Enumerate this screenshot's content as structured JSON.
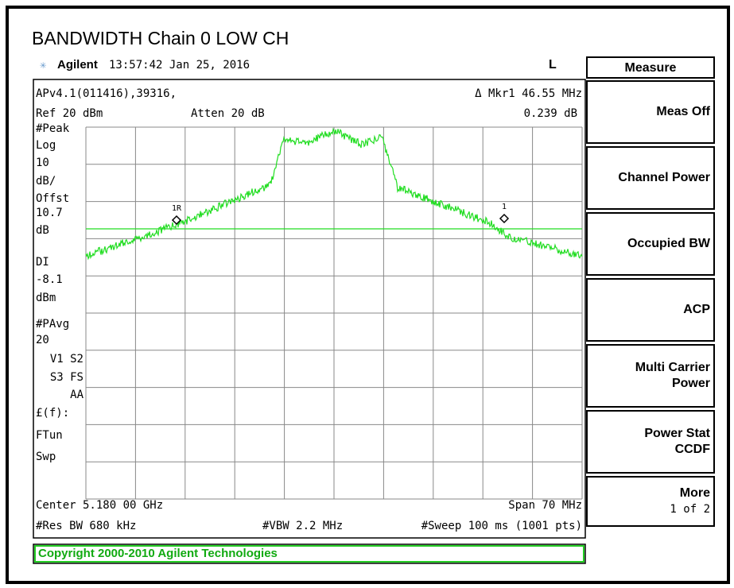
{
  "title": "BANDWIDTH Chain 0 LOW CH",
  "header": {
    "brand": "Agilent",
    "time": "13:57:42  Jan 25, 2016",
    "mode": "L"
  },
  "menu": {
    "title": "Measure",
    "buttons": [
      {
        "lines": [
          "Meas Off"
        ]
      },
      {
        "lines": [
          "Channel Power"
        ]
      },
      {
        "lines": [
          "Occupied BW"
        ]
      },
      {
        "lines": [
          "ACP"
        ]
      },
      {
        "lines": [
          "Multi Carrier",
          "Power"
        ]
      },
      {
        "lines": [
          "Power Stat",
          "CCDF"
        ]
      },
      {
        "lines": [
          "More",
          "1 of 2"
        ]
      }
    ]
  },
  "screen": {
    "top_left": [
      "APv4.1(011416),39316,",
      "Ref 20 dBm"
    ],
    "atten": "Atten 20 dB",
    "marker": [
      "Δ Mkr1  46.55 MHz",
      "0.239 dB"
    ],
    "side_labels": [
      "#Peak",
      "Log",
      "10",
      "dB/",
      "Offst",
      "10.7",
      "dB",
      "DI",
      "-8.1",
      "dBm",
      "#PAvg",
      "20",
      "V1  S2",
      "S3  FS",
      "AA",
      "£(f):",
      "FTun",
      "Swp"
    ],
    "marker_tags": [
      "1R",
      "1"
    ],
    "center": "Center 5.180 00 GHz",
    "span": "Span 70 MHz",
    "res_bw": "#Res BW 680 kHz",
    "vbw": "#VBW 2.2 MHz",
    "sweep": "#Sweep 100 ms (1001 pts)"
  },
  "footer": "Copyright 2000-2010 Agilent Technologies"
}
